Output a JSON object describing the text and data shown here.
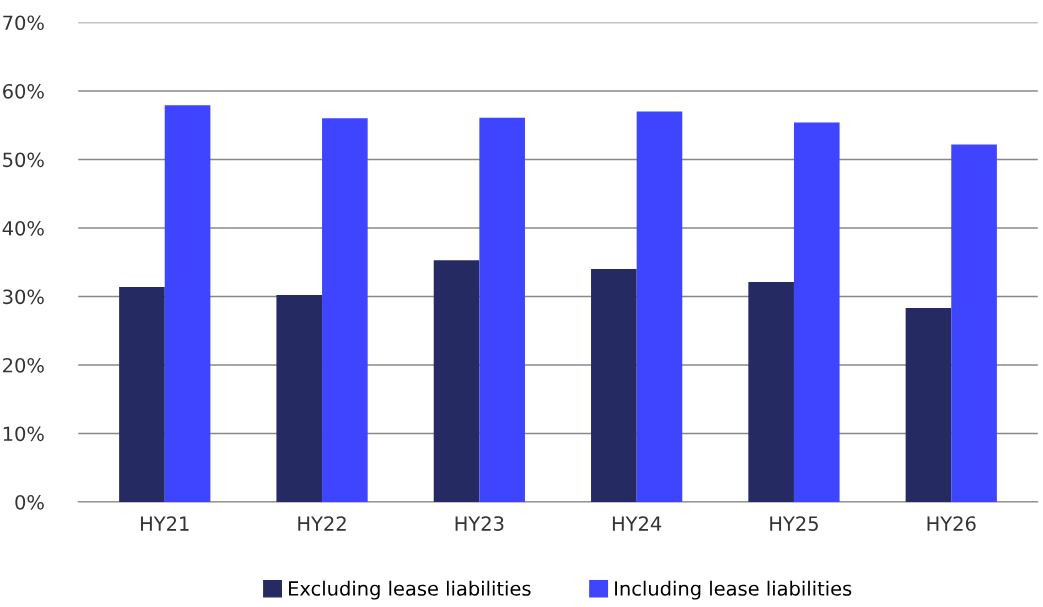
{
  "chart_data": {
    "type": "bar",
    "categories": [
      "HY21",
      "HY22",
      "HY23",
      "HY24",
      "HY25",
      "HY26"
    ],
    "series": [
      {
        "name": "Excluding lease liabilities",
        "color": "#262a63",
        "values": [
          31.4,
          30.2,
          35.3,
          34.0,
          32.1,
          28.3
        ]
      },
      {
        "name": "Including lease liabilities",
        "color": "#3f44ff",
        "values": [
          57.9,
          56.0,
          56.1,
          57.0,
          55.4,
          52.2
        ]
      }
    ],
    "ylim": [
      0,
      70
    ],
    "yticks": [
      {
        "value": 0,
        "label": "0%"
      },
      {
        "value": 10,
        "label": "10%"
      },
      {
        "value": 20,
        "label": "20%"
      },
      {
        "value": 30,
        "label": "30%"
      },
      {
        "value": 40,
        "label": "40%"
      },
      {
        "value": 50,
        "label": "50%"
      },
      {
        "value": 60,
        "label": "60%"
      },
      {
        "value": 70,
        "label": "70%"
      }
    ],
    "grid": "y",
    "legend": "bottom"
  }
}
